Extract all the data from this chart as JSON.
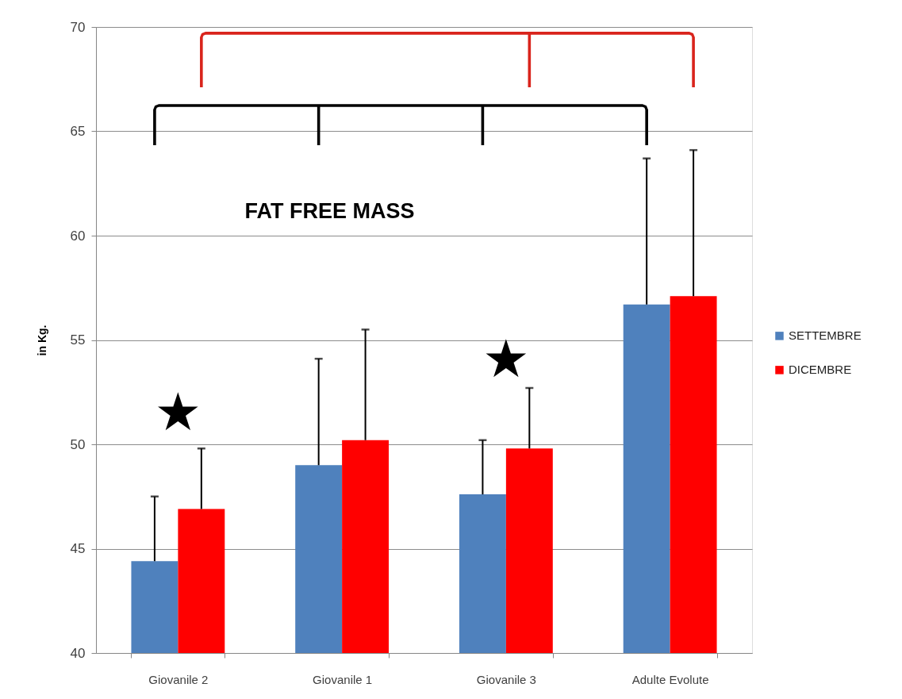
{
  "chart_data": {
    "type": "bar",
    "title": "FAT FREE MASS",
    "ylabel": "in Kg.",
    "categories": [
      "Giovanile 2",
      "Giovanile 1",
      "Giovanile 3",
      "Adulte Evolute"
    ],
    "series": [
      {
        "name": "SETTEMBRE",
        "color": "#4f81bd",
        "values": [
          44.4,
          49.0,
          47.6,
          56.7
        ],
        "errors": [
          [
            44.4,
            47.5
          ],
          [
            49.0,
            54.1
          ],
          [
            47.6,
            50.2
          ],
          [
            56.7,
            63.7
          ]
        ]
      },
      {
        "name": "DICEMBRE",
        "color": "#ff0000",
        "values": [
          46.9,
          50.2,
          49.8,
          57.1
        ],
        "errors": [
          [
            46.9,
            49.8
          ],
          [
            50.2,
            55.5
          ],
          [
            49.8,
            52.7
          ],
          [
            57.1,
            64.1
          ]
        ]
      }
    ],
    "ylim": [
      40,
      70
    ],
    "yticks": [
      40,
      45,
      50,
      55,
      60,
      65,
      70
    ],
    "grid": "y",
    "legend": "right",
    "annotations": [
      "★",
      "★"
    ]
  }
}
